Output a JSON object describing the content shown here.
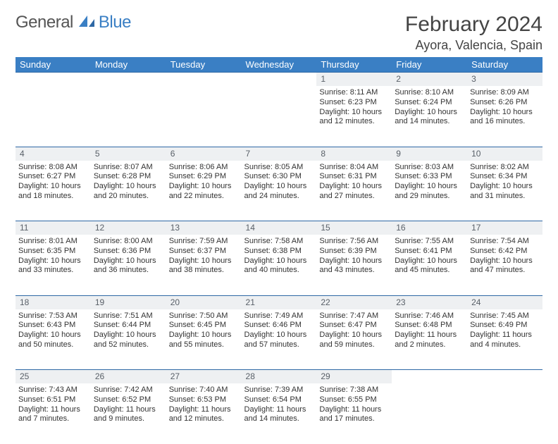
{
  "logo": {
    "text1": "General",
    "text2": "Blue"
  },
  "header": {
    "title": "February 2024",
    "location": "Ayora, Valencia, Spain"
  },
  "colors": {
    "brand": "#3a7fc4",
    "header_text": "#ffffff",
    "daynum_bg": "#eef0f2",
    "border": "#2e68a5"
  },
  "weekdays": [
    "Sunday",
    "Monday",
    "Tuesday",
    "Wednesday",
    "Thursday",
    "Friday",
    "Saturday"
  ],
  "weeks": [
    [
      null,
      null,
      null,
      null,
      {
        "n": "1",
        "sr": "Sunrise: 8:11 AM",
        "ss": "Sunset: 6:23 PM",
        "dl": "Daylight: 10 hours and 12 minutes."
      },
      {
        "n": "2",
        "sr": "Sunrise: 8:10 AM",
        "ss": "Sunset: 6:24 PM",
        "dl": "Daylight: 10 hours and 14 minutes."
      },
      {
        "n": "3",
        "sr": "Sunrise: 8:09 AM",
        "ss": "Sunset: 6:26 PM",
        "dl": "Daylight: 10 hours and 16 minutes."
      }
    ],
    [
      {
        "n": "4",
        "sr": "Sunrise: 8:08 AM",
        "ss": "Sunset: 6:27 PM",
        "dl": "Daylight: 10 hours and 18 minutes."
      },
      {
        "n": "5",
        "sr": "Sunrise: 8:07 AM",
        "ss": "Sunset: 6:28 PM",
        "dl": "Daylight: 10 hours and 20 minutes."
      },
      {
        "n": "6",
        "sr": "Sunrise: 8:06 AM",
        "ss": "Sunset: 6:29 PM",
        "dl": "Daylight: 10 hours and 22 minutes."
      },
      {
        "n": "7",
        "sr": "Sunrise: 8:05 AM",
        "ss": "Sunset: 6:30 PM",
        "dl": "Daylight: 10 hours and 24 minutes."
      },
      {
        "n": "8",
        "sr": "Sunrise: 8:04 AM",
        "ss": "Sunset: 6:31 PM",
        "dl": "Daylight: 10 hours and 27 minutes."
      },
      {
        "n": "9",
        "sr": "Sunrise: 8:03 AM",
        "ss": "Sunset: 6:33 PM",
        "dl": "Daylight: 10 hours and 29 minutes."
      },
      {
        "n": "10",
        "sr": "Sunrise: 8:02 AM",
        "ss": "Sunset: 6:34 PM",
        "dl": "Daylight: 10 hours and 31 minutes."
      }
    ],
    [
      {
        "n": "11",
        "sr": "Sunrise: 8:01 AM",
        "ss": "Sunset: 6:35 PM",
        "dl": "Daylight: 10 hours and 33 minutes."
      },
      {
        "n": "12",
        "sr": "Sunrise: 8:00 AM",
        "ss": "Sunset: 6:36 PM",
        "dl": "Daylight: 10 hours and 36 minutes."
      },
      {
        "n": "13",
        "sr": "Sunrise: 7:59 AM",
        "ss": "Sunset: 6:37 PM",
        "dl": "Daylight: 10 hours and 38 minutes."
      },
      {
        "n": "14",
        "sr": "Sunrise: 7:58 AM",
        "ss": "Sunset: 6:38 PM",
        "dl": "Daylight: 10 hours and 40 minutes."
      },
      {
        "n": "15",
        "sr": "Sunrise: 7:56 AM",
        "ss": "Sunset: 6:39 PM",
        "dl": "Daylight: 10 hours and 43 minutes."
      },
      {
        "n": "16",
        "sr": "Sunrise: 7:55 AM",
        "ss": "Sunset: 6:41 PM",
        "dl": "Daylight: 10 hours and 45 minutes."
      },
      {
        "n": "17",
        "sr": "Sunrise: 7:54 AM",
        "ss": "Sunset: 6:42 PM",
        "dl": "Daylight: 10 hours and 47 minutes."
      }
    ],
    [
      {
        "n": "18",
        "sr": "Sunrise: 7:53 AM",
        "ss": "Sunset: 6:43 PM",
        "dl": "Daylight: 10 hours and 50 minutes."
      },
      {
        "n": "19",
        "sr": "Sunrise: 7:51 AM",
        "ss": "Sunset: 6:44 PM",
        "dl": "Daylight: 10 hours and 52 minutes."
      },
      {
        "n": "20",
        "sr": "Sunrise: 7:50 AM",
        "ss": "Sunset: 6:45 PM",
        "dl": "Daylight: 10 hours and 55 minutes."
      },
      {
        "n": "21",
        "sr": "Sunrise: 7:49 AM",
        "ss": "Sunset: 6:46 PM",
        "dl": "Daylight: 10 hours and 57 minutes."
      },
      {
        "n": "22",
        "sr": "Sunrise: 7:47 AM",
        "ss": "Sunset: 6:47 PM",
        "dl": "Daylight: 10 hours and 59 minutes."
      },
      {
        "n": "23",
        "sr": "Sunrise: 7:46 AM",
        "ss": "Sunset: 6:48 PM",
        "dl": "Daylight: 11 hours and 2 minutes."
      },
      {
        "n": "24",
        "sr": "Sunrise: 7:45 AM",
        "ss": "Sunset: 6:49 PM",
        "dl": "Daylight: 11 hours and 4 minutes."
      }
    ],
    [
      {
        "n": "25",
        "sr": "Sunrise: 7:43 AM",
        "ss": "Sunset: 6:51 PM",
        "dl": "Daylight: 11 hours and 7 minutes."
      },
      {
        "n": "26",
        "sr": "Sunrise: 7:42 AM",
        "ss": "Sunset: 6:52 PM",
        "dl": "Daylight: 11 hours and 9 minutes."
      },
      {
        "n": "27",
        "sr": "Sunrise: 7:40 AM",
        "ss": "Sunset: 6:53 PM",
        "dl": "Daylight: 11 hours and 12 minutes."
      },
      {
        "n": "28",
        "sr": "Sunrise: 7:39 AM",
        "ss": "Sunset: 6:54 PM",
        "dl": "Daylight: 11 hours and 14 minutes."
      },
      {
        "n": "29",
        "sr": "Sunrise: 7:38 AM",
        "ss": "Sunset: 6:55 PM",
        "dl": "Daylight: 11 hours and 17 minutes."
      },
      null,
      null
    ]
  ]
}
